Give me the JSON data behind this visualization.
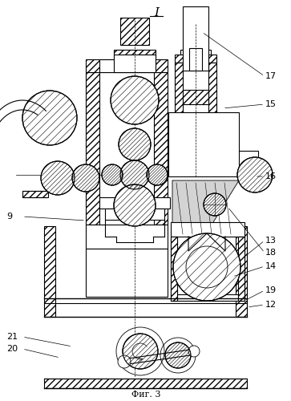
{
  "title": "I",
  "fig_label": "Фиг. 3",
  "bg_color": "#ffffff",
  "line_color": "#000000",
  "labels": [
    "9",
    "12",
    "13",
    "14",
    "15",
    "16",
    "17",
    "18",
    "19",
    "20",
    "21"
  ]
}
